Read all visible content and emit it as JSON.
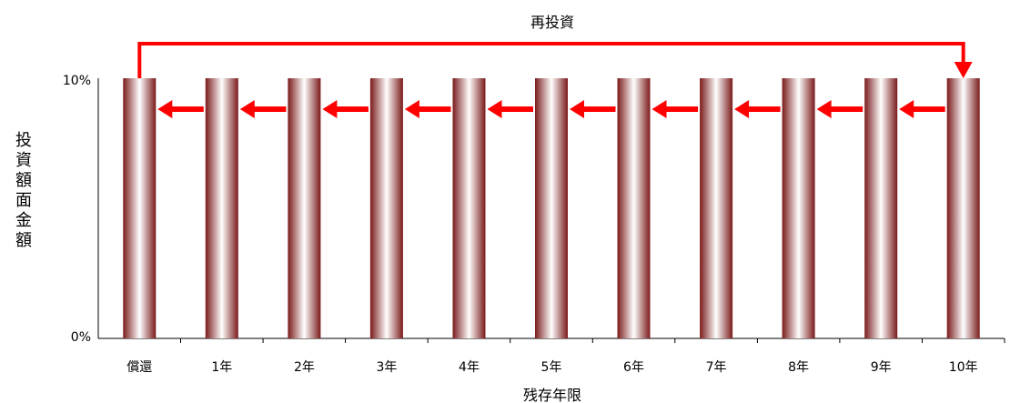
{
  "chart_data": {
    "type": "bar",
    "title": "再投資",
    "xlabel": "残存年限",
    "ylabel": "投資額面金額",
    "categories": [
      "償還",
      "1年",
      "2年",
      "3年",
      "4年",
      "5年",
      "6年",
      "7年",
      "8年",
      "9年",
      "10年"
    ],
    "values": [
      10,
      10,
      10,
      10,
      10,
      10,
      10,
      10,
      10,
      10,
      10
    ],
    "ylim": [
      0,
      10
    ],
    "yticks": [
      "0%",
      "10%"
    ],
    "grid": false,
    "legend": "none",
    "colors": {
      "bar_dark": "#7a1a1a",
      "bar_light": "#ffffff",
      "arrow": "#ff0000",
      "axis": "#000000"
    },
    "annotations": {
      "shift_arrows": "each bar's holding moves one year shorter (left-pointing red arrows)",
      "reinvest_arrow": "redeemed amount reinvested into 10-year bucket"
    }
  }
}
